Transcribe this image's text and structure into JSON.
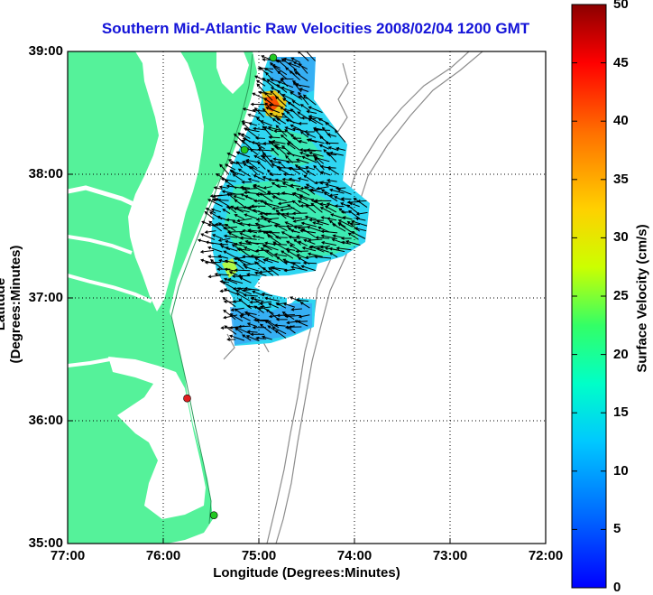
{
  "title": "Southern Mid-Atlantic Raw Velocities 2008/02/04 1200 GMT",
  "x_axis": {
    "label": "Longitude (Degrees:Minutes)",
    "ticks": [
      "77:00",
      "76:00",
      "75:00",
      "74:00",
      "73:00",
      "72:00"
    ]
  },
  "y_axis": {
    "label": "Latitude (Degrees:Minutes)",
    "ticks": [
      "39:00",
      "38:00",
      "37:00",
      "36:00",
      "35:00"
    ]
  },
  "colorbar": {
    "label": "Surface Velocity (cm/s)",
    "ticks": [
      "50",
      "45",
      "40",
      "35",
      "30",
      "25",
      "20",
      "15",
      "10",
      "5",
      "0"
    ],
    "colormap": "jet",
    "range": [
      0,
      50
    ]
  },
  "colors": {
    "land": "#55f29a",
    "water": "#ffffff",
    "bathymetry": "#8c8c8c",
    "grid": "#000000",
    "title": "#1414d8"
  },
  "gridlines": "dotted",
  "stations": [
    {
      "lon": -74.85,
      "lat": 38.95,
      "color": "#22c822"
    },
    {
      "lon": -75.15,
      "lat": 38.2,
      "color": "#22c822"
    },
    {
      "lon": -75.75,
      "lat": 36.18,
      "color": "#e02020"
    },
    {
      "lon": -75.47,
      "lat": 35.23,
      "color": "#22c822"
    }
  ]
}
